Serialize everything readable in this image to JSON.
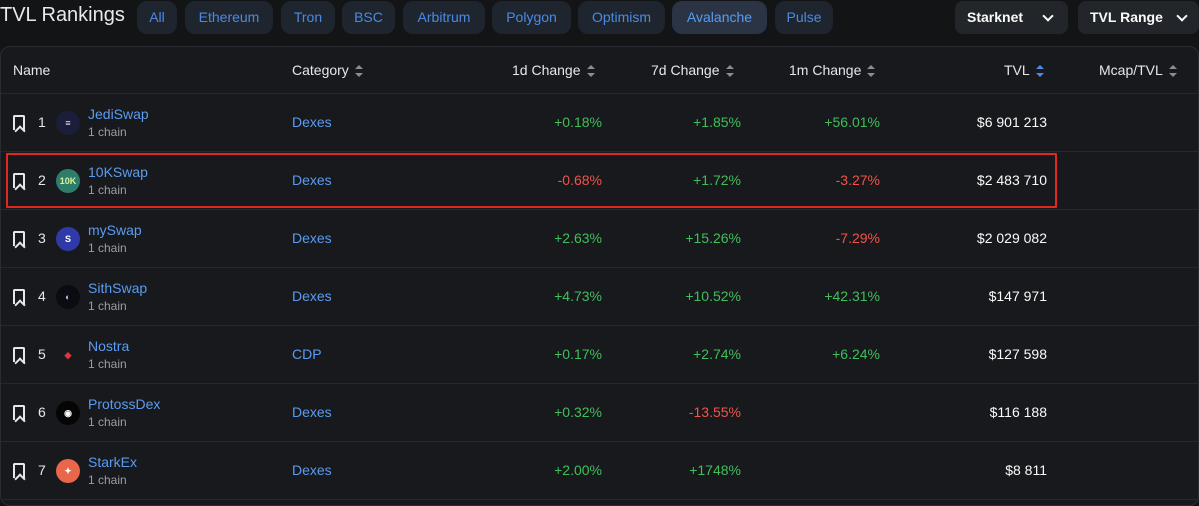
{
  "title": "TVL Rankings",
  "filters": [
    "All",
    "Ethereum",
    "Tron",
    "BSC",
    "Arbitrum",
    "Polygon",
    "Optimism",
    "Avalanche",
    "Pulse"
  ],
  "active_filter": "Avalanche",
  "chain_select": "Starknet",
  "range_select": "TVL Range",
  "columns": {
    "name": "Name",
    "category": "Category",
    "d1": "1d Change",
    "d7": "7d Change",
    "m1": "1m Change",
    "tvl": "TVL",
    "mcap": "Mcap/TVL"
  },
  "rows": [
    {
      "rank": "1",
      "name": "JediSwap",
      "chains": "1 chain",
      "category": "Dexes",
      "d1": "+0.18%",
      "d7": "+1.85%",
      "m1": "+56.01%",
      "tvl": "$6 901 213",
      "logo_bg": "#1b1d3a",
      "logo_fg": "#e6e7ff",
      "logo_text": "≡"
    },
    {
      "rank": "2",
      "name": "10KSwap",
      "chains": "1 chain",
      "category": "Dexes",
      "d1": "-0.68%",
      "d7": "+1.72%",
      "m1": "-3.27%",
      "tvl": "$2 483 710",
      "logo_bg": "#2e7d6a",
      "logo_fg": "#d7f2a0",
      "logo_text": "10K"
    },
    {
      "rank": "3",
      "name": "mySwap",
      "chains": "1 chain",
      "category": "Dexes",
      "d1": "+2.63%",
      "d7": "+15.26%",
      "m1": "-7.29%",
      "tvl": "$2 029 082",
      "logo_bg": "#2f3aa8",
      "logo_fg": "#ffffff",
      "logo_text": "S"
    },
    {
      "rank": "4",
      "name": "SithSwap",
      "chains": "1 chain",
      "category": "Dexes",
      "d1": "+4.73%",
      "d7": "+10.52%",
      "m1": "+42.31%",
      "tvl": "$147 971",
      "logo_bg": "#0b0b12",
      "logo_fg": "#c9b8ff",
      "logo_text": "◐"
    },
    {
      "rank": "5",
      "name": "Nostra",
      "chains": "1 chain",
      "category": "CDP",
      "d1": "+0.17%",
      "d7": "+2.74%",
      "m1": "+6.24%",
      "tvl": "$127 598",
      "logo_bg": "#18191d",
      "logo_fg": "#e2343f",
      "logo_text": "◆"
    },
    {
      "rank": "6",
      "name": "ProtossDex",
      "chains": "1 chain",
      "category": "Dexes",
      "d1": "+0.32%",
      "d7": "-13.55%",
      "m1": "",
      "tvl": "$116 188",
      "logo_bg": "#050505",
      "logo_fg": "#ffffff",
      "logo_text": "◉"
    },
    {
      "rank": "7",
      "name": "StarkEx",
      "chains": "1 chain",
      "category": "Dexes",
      "d1": "+2.00%",
      "d7": "+1748%",
      "m1": "",
      "tvl": "$8 811",
      "logo_bg": "#e8674a",
      "logo_fg": "#ffffff",
      "logo_text": "✦"
    }
  ],
  "colors": {
    "positive": "#3fbf5a",
    "negative": "#f0534a",
    "link": "#5b9cf0",
    "highlight": "#e0281e"
  }
}
